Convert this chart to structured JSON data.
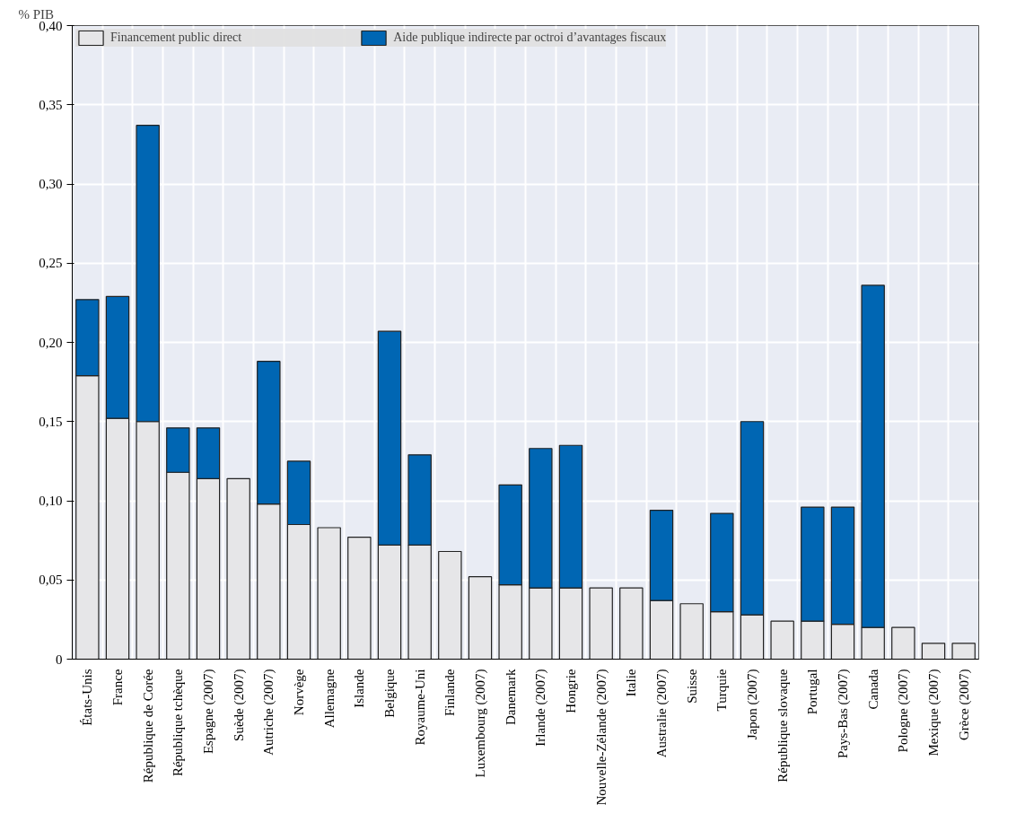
{
  "chart_data": {
    "type": "bar",
    "stacked": true,
    "ylabel": "% PIB",
    "categories": [
      "États-Unis",
      "France",
      "République de Corée",
      "République tchèque",
      "Espagne (2007)",
      "Suède (2007)",
      "Autriche (2007)",
      "Norvège",
      "Allemagne",
      "Islande",
      "Belgique",
      "Royaume-Uni",
      "Finlande",
      "Luxembourg (2007)",
      "Danemark",
      "Irlande (2007)",
      "Hongrie",
      "Nouvelle-Zélande (2007)",
      "Italie",
      "Australie (2007)",
      "Suisse",
      "Turquie",
      "Japon (2007)",
      "République slovaque",
      "Portugal",
      "Pays-Bas (2007)",
      "Canada",
      "Pologne (2007)",
      "Mexique (2007)",
      "Grèce (2007)"
    ],
    "series": [
      {
        "name": "Financement public direct",
        "color": "#e6e6e8",
        "values": [
          0.179,
          0.152,
          0.15,
          0.118,
          0.114,
          0.114,
          0.098,
          0.085,
          0.083,
          0.077,
          0.072,
          0.072,
          0.068,
          0.052,
          0.047,
          0.045,
          0.045,
          0.045,
          0.045,
          0.037,
          0.035,
          0.03,
          0.028,
          0.024,
          0.024,
          0.022,
          0.02,
          0.02,
          0.01,
          0.01
        ]
      },
      {
        "name": "Aide publique indirecte par octroi d’avantages fiscaux",
        "color": "#0066b3",
        "values": [
          0.048,
          0.077,
          0.187,
          0.028,
          0.032,
          null,
          0.09,
          0.04,
          null,
          null,
          0.135,
          0.057,
          null,
          null,
          0.063,
          0.088,
          0.09,
          null,
          null,
          0.057,
          null,
          0.062,
          0.122,
          null,
          0.072,
          0.074,
          0.216,
          null,
          null,
          null
        ]
      }
    ],
    "ylim": [
      0,
      0.4
    ],
    "yticks": [
      {
        "value": 0,
        "label": "0"
      },
      {
        "value": 0.05,
        "label": "0,05"
      },
      {
        "value": 0.1,
        "label": "0,10"
      },
      {
        "value": 0.15,
        "label": "0,15"
      },
      {
        "value": 0.2,
        "label": "0,20"
      },
      {
        "value": 0.25,
        "label": "0,25"
      },
      {
        "value": 0.3,
        "label": "0,30"
      },
      {
        "value": 0.35,
        "label": "0,35"
      },
      {
        "value": 0.4,
        "label": "0,40"
      }
    ],
    "grid": true,
    "legend": "top"
  }
}
